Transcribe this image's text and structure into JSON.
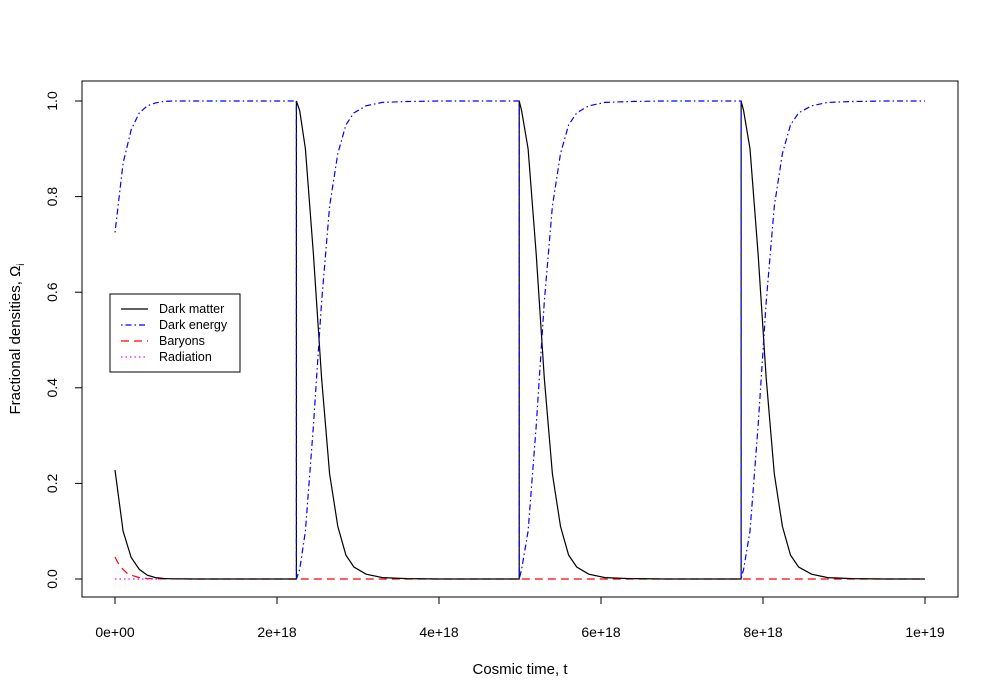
{
  "chart_data": {
    "type": "line",
    "xlabel": "Cosmic time, t",
    "ylabel": "Fractional densities, Ω",
    "ylabel_subscript": "i",
    "xlim": [
      0,
      1e+19
    ],
    "ylim": [
      0,
      1
    ],
    "x_ticks": [
      0,
      2e+18,
      4e+18,
      6e+18,
      8e+18,
      1e+19
    ],
    "x_tick_labels": [
      "0e+00",
      "2e+18",
      "4e+18",
      "6e+18",
      "8e+18",
      "1e+19"
    ],
    "y_ticks": [
      0,
      0.2,
      0.4,
      0.6,
      0.8,
      1
    ],
    "y_tick_labels": [
      "0.0",
      "0.2",
      "0.4",
      "0.6",
      "0.8",
      "1.0"
    ],
    "grid": false,
    "legend_position": "left",
    "series": [
      {
        "name": "Dark matter",
        "color": "#000000",
        "dash": "solid",
        "x": [
          0,
          1e+17,
          2e+17,
          3e+17,
          4e+17,
          5e+17,
          6e+17,
          7e+17,
          8e+17,
          1e+18,
          1.5e+18,
          2.24e+18,
          2.2401e+18,
          2.28e+18,
          2.35e+18,
          2.45e+18,
          2.55e+18,
          2.65e+18,
          2.75e+18,
          2.85e+18,
          2.95e+18,
          3.1e+18,
          3.3e+18,
          3.6e+18,
          4e+18,
          4.6e+18,
          4.99e+18,
          4.9901e+18,
          5.02e+18,
          5.1e+18,
          5.2e+18,
          5.3e+18,
          5.4e+18,
          5.5e+18,
          5.6e+18,
          5.7e+18,
          5.85e+18,
          6.05e+18,
          6.35e+18,
          6.8e+18,
          7.3e+18,
          7.73e+18,
          7.7301e+18,
          7.76e+18,
          7.84e+18,
          7.94e+18,
          8.04e+18,
          8.14e+18,
          8.24e+18,
          8.34e+18,
          8.44e+18,
          8.6e+18,
          8.8e+18,
          9.1e+18,
          9.5e+18,
          1e+19
        ],
        "y": [
          0.228,
          0.1,
          0.045,
          0.02,
          0.008,
          0.003,
          0.001,
          0.0005,
          0.0002,
          0,
          0,
          0,
          1.0,
          0.98,
          0.9,
          0.68,
          0.42,
          0.22,
          0.11,
          0.05,
          0.025,
          0.01,
          0.003,
          0.0008,
          0,
          0,
          0,
          1.0,
          0.98,
          0.9,
          0.68,
          0.42,
          0.22,
          0.11,
          0.05,
          0.025,
          0.01,
          0.003,
          0.0008,
          0,
          0,
          0,
          1.0,
          0.98,
          0.9,
          0.68,
          0.42,
          0.22,
          0.11,
          0.05,
          0.025,
          0.01,
          0.003,
          0.0008,
          0,
          0
        ]
      },
      {
        "name": "Dark energy",
        "color": "#0000ff",
        "dash": "dotdash",
        "x": [
          0,
          1e+17,
          2e+17,
          3e+17,
          4e+17,
          5e+17,
          6e+17,
          7e+17,
          8e+17,
          1e+18,
          1.5e+18,
          2.24e+18,
          2.2401e+18,
          2.28e+18,
          2.35e+18,
          2.45e+18,
          2.55e+18,
          2.65e+18,
          2.75e+18,
          2.85e+18,
          2.95e+18,
          3.1e+18,
          3.3e+18,
          3.6e+18,
          4e+18,
          4.6e+18,
          4.99e+18,
          4.9901e+18,
          5.02e+18,
          5.1e+18,
          5.2e+18,
          5.3e+18,
          5.4e+18,
          5.5e+18,
          5.6e+18,
          5.7e+18,
          5.85e+18,
          6.05e+18,
          6.35e+18,
          6.8e+18,
          7.3e+18,
          7.73e+18,
          7.7301e+18,
          7.76e+18,
          7.84e+18,
          7.94e+18,
          8.04e+18,
          8.14e+18,
          8.24e+18,
          8.34e+18,
          8.44e+18,
          8.6e+18,
          8.8e+18,
          9.1e+18,
          9.5e+18,
          1e+19
        ],
        "y": [
          0.725,
          0.87,
          0.94,
          0.975,
          0.99,
          0.996,
          0.999,
          1.0,
          1.0,
          1.0,
          1.0,
          1.0,
          0,
          0.02,
          0.1,
          0.32,
          0.58,
          0.78,
          0.89,
          0.95,
          0.975,
          0.99,
          0.997,
          0.999,
          1.0,
          1.0,
          1.0,
          0,
          0.02,
          0.1,
          0.32,
          0.58,
          0.78,
          0.89,
          0.95,
          0.975,
          0.99,
          0.997,
          0.999,
          1.0,
          1.0,
          1.0,
          0,
          0.02,
          0.1,
          0.32,
          0.58,
          0.78,
          0.89,
          0.95,
          0.975,
          0.99,
          0.997,
          0.999,
          1.0,
          1.0
        ]
      },
      {
        "name": "Baryons",
        "color": "#ff0000",
        "dash": "dashed",
        "x": [
          0,
          5e+16,
          1e+17,
          1.5e+17,
          2e+17,
          3e+17,
          4e+17,
          5e+17,
          6e+17,
          1e+18,
          1e+19
        ],
        "y": [
          0.046,
          0.03,
          0.02,
          0.012,
          0.008,
          0.003,
          0.001,
          0.0005,
          0.0002,
          0,
          0
        ]
      },
      {
        "name": "Radiation",
        "color": "#ff00ff",
        "dash": "dotted",
        "x": [
          0,
          2e+17,
          4e+17,
          6e+17
        ],
        "y": [
          0.0001,
          3e-05,
          1e-05,
          0
        ]
      }
    ]
  }
}
